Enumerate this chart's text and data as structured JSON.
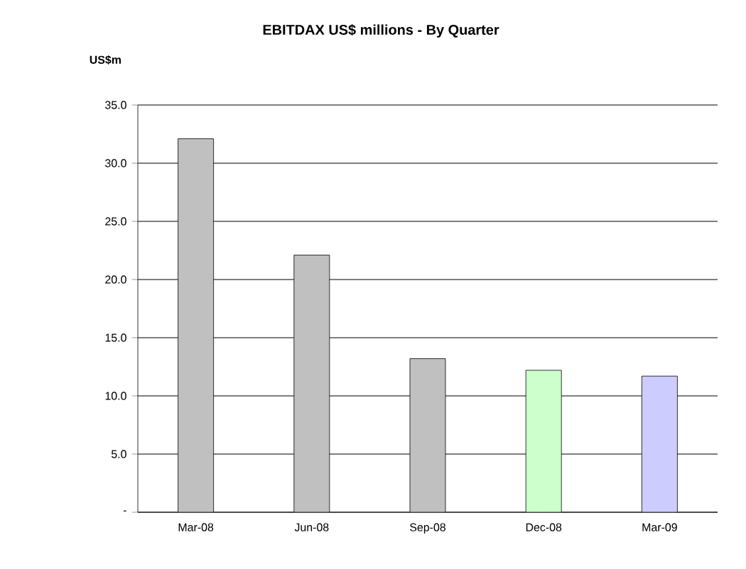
{
  "chart_data": {
    "type": "bar",
    "title": "EBITDAX US$ millions - By Quarter",
    "ylabel": "US$m",
    "categories": [
      "Mar-08",
      "Jun-08",
      "Sep-08",
      "Dec-08",
      "Mar-09"
    ],
    "values": [
      32.1,
      22.1,
      13.2,
      12.2,
      11.7
    ],
    "colors": [
      "#c0c0c0",
      "#c0c0c0",
      "#c0c0c0",
      "#ccffcc",
      "#ccccff"
    ],
    "ylim": [
      0,
      35
    ],
    "yticks": [
      {
        "value": 0,
        "label": "-"
      },
      {
        "value": 5,
        "label": "5.0"
      },
      {
        "value": 10,
        "label": "10.0"
      },
      {
        "value": 15,
        "label": "15.0"
      },
      {
        "value": 20,
        "label": "20.0"
      },
      {
        "value": 25,
        "label": "25.0"
      },
      {
        "value": 30,
        "label": "30.0"
      },
      {
        "value": 35,
        "label": "35.0"
      }
    ],
    "grid": "y"
  }
}
